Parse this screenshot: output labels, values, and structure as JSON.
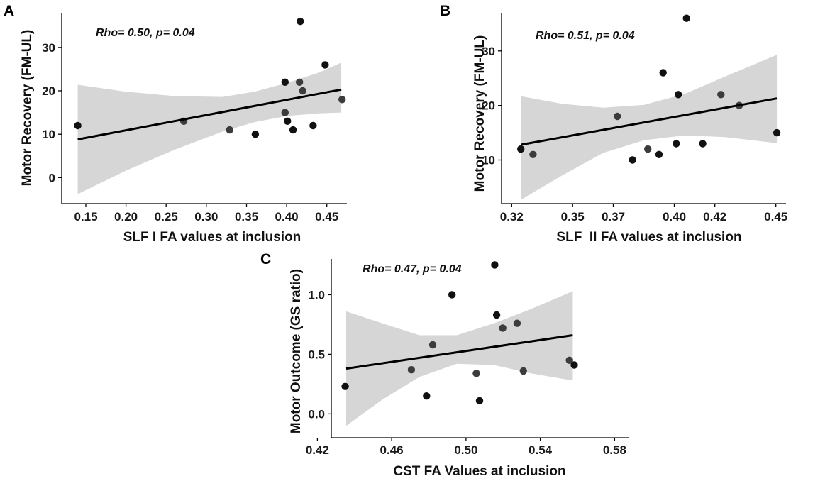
{
  "chart_data": [
    {
      "type": "scatter",
      "panel": "A",
      "annotation": "Rho= 0.50, p= 0.04",
      "xlabel": "SLF I FA values at inclusion",
      "ylabel": "Motor Recovery (FM-UL)",
      "xlim": [
        0.12,
        0.475
      ],
      "ylim": [
        -6,
        38
      ],
      "xticks": [
        0.15,
        0.2,
        0.25,
        0.3,
        0.35,
        0.4,
        0.45
      ],
      "xtick_labels": [
        "0.15",
        "0.20",
        "0.25",
        "0.30",
        "0.35",
        "0.40",
        "0.45"
      ],
      "yticks": [
        0,
        10,
        20,
        30
      ],
      "ytick_labels": [
        "0",
        "10",
        "20",
        "30"
      ],
      "points": [
        {
          "x": 0.14,
          "y": 12,
          "shade": "dark"
        },
        {
          "x": 0.272,
          "y": 13,
          "shade": "mid"
        },
        {
          "x": 0.329,
          "y": 11,
          "shade": "mid"
        },
        {
          "x": 0.361,
          "y": 10,
          "shade": "dark"
        },
        {
          "x": 0.398,
          "y": 22,
          "shade": "dark"
        },
        {
          "x": 0.398,
          "y": 15,
          "shade": "mid"
        },
        {
          "x": 0.401,
          "y": 13,
          "shade": "dark"
        },
        {
          "x": 0.408,
          "y": 11,
          "shade": "dark"
        },
        {
          "x": 0.416,
          "y": 22,
          "shade": "mid"
        },
        {
          "x": 0.417,
          "y": 36,
          "shade": "dark"
        },
        {
          "x": 0.42,
          "y": 20,
          "shade": "mid"
        },
        {
          "x": 0.433,
          "y": 12,
          "shade": "dark"
        },
        {
          "x": 0.448,
          "y": 26,
          "shade": "dark"
        },
        {
          "x": 0.469,
          "y": 18,
          "shade": "mid"
        }
      ],
      "fit": {
        "x": [
          0.14,
          0.468
        ],
        "y": [
          8.8,
          20.3
        ]
      },
      "ci": {
        "x": [
          0.14,
          0.2,
          0.26,
          0.32,
          0.36,
          0.4,
          0.44,
          0.468
        ],
        "lower": [
          -3.8,
          1.6,
          6.4,
          10.6,
          12.8,
          14.2,
          14.8,
          15.0
        ],
        "upper": [
          21.4,
          19.8,
          18.8,
          18.6,
          19.8,
          21.8,
          24.2,
          26.5
        ]
      }
    },
    {
      "type": "scatter",
      "panel": "B",
      "annotation": "Rho= 0.51, p= 0.04",
      "xlabel": "SLF  II FA values at inclusion",
      "ylabel": "Motor Recovery (FM-UL)",
      "xlim": [
        0.315,
        0.455
      ],
      "ylim": [
        2,
        37
      ],
      "xticks": [
        0.32,
        0.35,
        0.37,
        0.4,
        0.42,
        0.45
      ],
      "xtick_labels": [
        "0.32",
        "0.35",
        "0.37",
        "0.40",
        "0.42",
        "0.45"
      ],
      "yticks": [
        10,
        20,
        30
      ],
      "ytick_labels": [
        "10",
        "20",
        "30"
      ],
      "points": [
        {
          "x": 0.3245,
          "y": 12,
          "shade": "dark"
        },
        {
          "x": 0.3305,
          "y": 11,
          "shade": "mid"
        },
        {
          "x": 0.372,
          "y": 18,
          "shade": "mid"
        },
        {
          "x": 0.3795,
          "y": 10,
          "shade": "dark"
        },
        {
          "x": 0.387,
          "y": 12,
          "shade": "mid"
        },
        {
          "x": 0.3925,
          "y": 11,
          "shade": "dark"
        },
        {
          "x": 0.3945,
          "y": 26,
          "shade": "dark"
        },
        {
          "x": 0.401,
          "y": 13,
          "shade": "dark"
        },
        {
          "x": 0.402,
          "y": 22,
          "shade": "dark"
        },
        {
          "x": 0.406,
          "y": 36,
          "shade": "dark"
        },
        {
          "x": 0.414,
          "y": 13,
          "shade": "dark"
        },
        {
          "x": 0.423,
          "y": 22,
          "shade": "mid"
        },
        {
          "x": 0.432,
          "y": 20,
          "shade": "mid"
        },
        {
          "x": 0.4505,
          "y": 15,
          "shade": "dark"
        }
      ],
      "fit": {
        "x": [
          0.3245,
          0.4505
        ],
        "y": [
          12.8,
          21.3
        ]
      },
      "ci": {
        "x": [
          0.3245,
          0.345,
          0.365,
          0.385,
          0.405,
          0.425,
          0.4505
        ],
        "lower": [
          2.7,
          7.2,
          11.3,
          13.6,
          14.5,
          14.2,
          13.1
        ],
        "upper": [
          21.7,
          20.3,
          19.6,
          20.1,
          22.1,
          25.3,
          29.3
        ]
      }
    },
    {
      "type": "scatter",
      "panel": "C",
      "annotation": "Rho= 0.47, p= 0.04",
      "xlabel": "CST FA Values at inclusion",
      "ylabel": "Motor Outcome (GS ratio)",
      "xlim": [
        0.4275,
        0.5875
      ],
      "ylim": [
        -0.2,
        1.3
      ],
      "xticks": [
        0.42,
        0.46,
        0.5,
        0.54,
        0.58
      ],
      "xtick_labels": [
        "0.42",
        "0.46",
        "0.50",
        "0.54",
        "0.58"
      ],
      "yticks": [
        0.0,
        0.5,
        1.0
      ],
      "ytick_labels": [
        "0.0",
        "0.5",
        "1.0"
      ],
      "points": [
        {
          "x": 0.435,
          "y": 0.23,
          "shade": "dark"
        },
        {
          "x": 0.4706,
          "y": 0.37,
          "shade": "mid"
        },
        {
          "x": 0.4788,
          "y": 0.15,
          "shade": "dark"
        },
        {
          "x": 0.4821,
          "y": 0.58,
          "shade": "mid"
        },
        {
          "x": 0.4925,
          "y": 1.0,
          "shade": "dark"
        },
        {
          "x": 0.5056,
          "y": 0.34,
          "shade": "mid"
        },
        {
          "x": 0.5073,
          "y": 0.11,
          "shade": "dark"
        },
        {
          "x": 0.5155,
          "y": 1.25,
          "shade": "dark"
        },
        {
          "x": 0.5165,
          "y": 0.83,
          "shade": "dark"
        },
        {
          "x": 0.5198,
          "y": 0.72,
          "shade": "mid"
        },
        {
          "x": 0.5275,
          "y": 0.76,
          "shade": "mid"
        },
        {
          "x": 0.5309,
          "y": 0.36,
          "shade": "mid"
        },
        {
          "x": 0.5557,
          "y": 0.45,
          "shade": "mid"
        },
        {
          "x": 0.5583,
          "y": 0.41,
          "shade": "dark"
        }
      ],
      "fit": {
        "x": [
          0.4355,
          0.5575
        ],
        "y": [
          0.38,
          0.66
        ]
      },
      "ci": {
        "x": [
          0.4355,
          0.455,
          0.475,
          0.495,
          0.515,
          0.535,
          0.5575
        ],
        "lower": [
          -0.1,
          0.12,
          0.31,
          0.42,
          0.41,
          0.34,
          0.28
        ],
        "upper": [
          0.86,
          0.76,
          0.66,
          0.66,
          0.76,
          0.88,
          1.03
        ]
      }
    }
  ]
}
